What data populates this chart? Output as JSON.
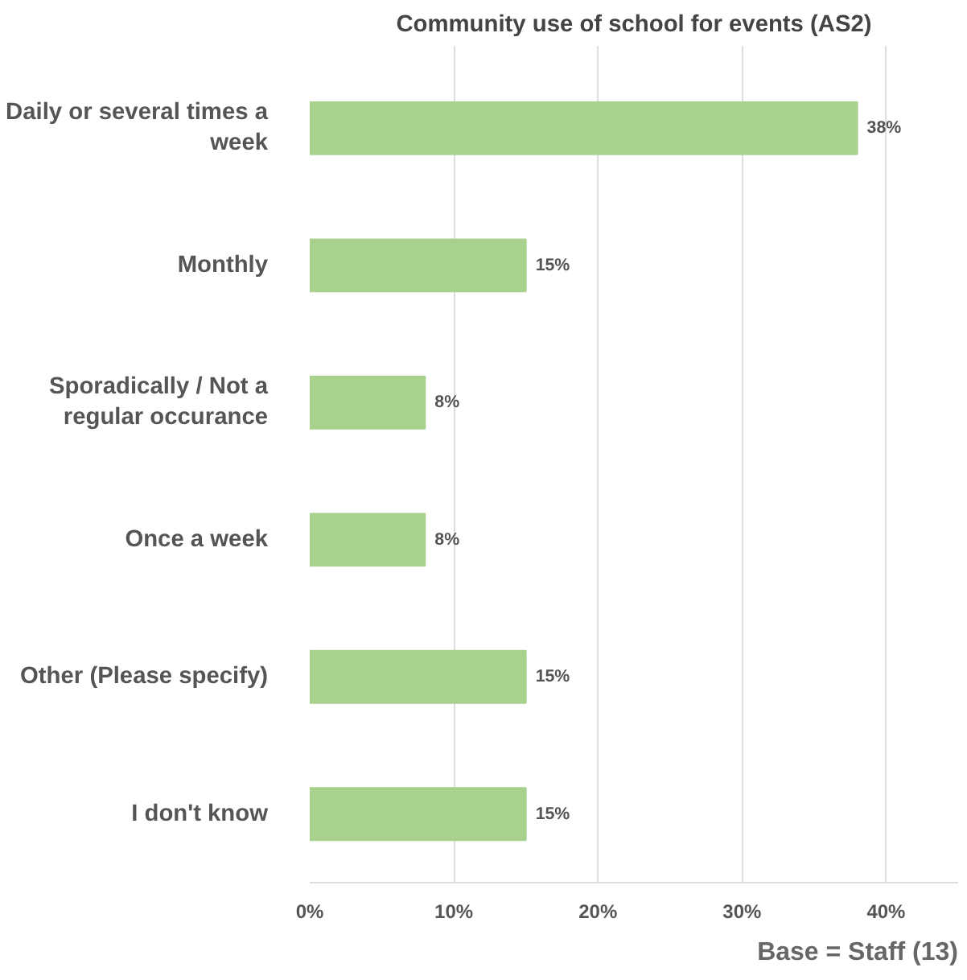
{
  "chart_data": {
    "type": "bar",
    "orientation": "horizontal",
    "title": "Community use of school for events (AS2)",
    "categories": [
      "Daily or several times a week",
      "Monthly",
      "Sporadically / Not a regular occurance",
      "Once a week",
      "Other (Please specify)",
      "I don't know"
    ],
    "values": [
      38,
      15,
      8,
      8,
      15,
      15
    ],
    "value_labels": [
      "38%",
      "15%",
      "8%",
      "8%",
      "15%",
      "15%"
    ],
    "color": "#a9d18e",
    "xlim": [
      0,
      45
    ],
    "xticks": [
      {
        "value": 0,
        "label": "0%"
      },
      {
        "value": 10,
        "label": "10%"
      },
      {
        "value": 20,
        "label": "20%"
      },
      {
        "value": 30,
        "label": "30%"
      },
      {
        "value": 40,
        "label": "40%"
      }
    ],
    "grid": "x",
    "annotations": [
      "Base = Staff (13)"
    ]
  }
}
